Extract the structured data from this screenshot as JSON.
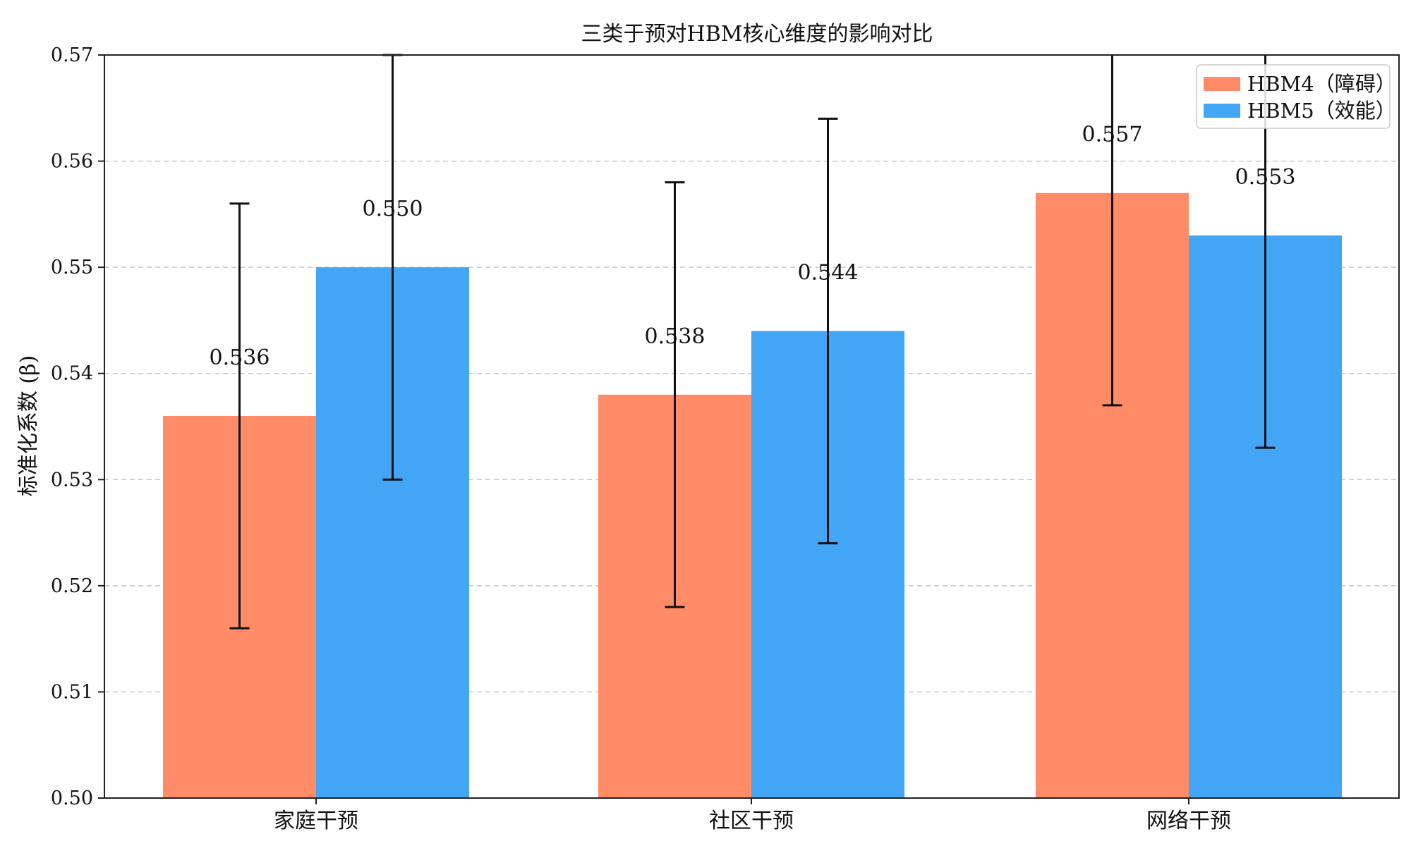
{
  "chart_data": {
    "type": "bar",
    "title": "三类于预对HBM核心维度的影响对比",
    "xlabel": "",
    "ylabel": "标准化系数 (β)",
    "categories": [
      "家庭干预",
      "社区干预",
      "网络干预"
    ],
    "series": [
      {
        "name": "HBM4（障碍）",
        "color": "#FF8C66",
        "values": [
          0.536,
          0.538,
          0.557
        ],
        "labels": [
          "0.536",
          "0.538",
          "0.557"
        ],
        "error": [
          0.02,
          0.02,
          0.02
        ]
      },
      {
        "name": "HBM5（效能）",
        "color": "#42A5F5",
        "values": [
          0.55,
          0.544,
          0.553
        ],
        "labels": [
          "0.550",
          "0.544",
          "0.553"
        ],
        "error": [
          0.02,
          0.02,
          0.02
        ]
      }
    ],
    "ylim": [
      0.5,
      0.57
    ],
    "yticks": [
      "0.50",
      "0.51",
      "0.52",
      "0.53",
      "0.54",
      "0.55",
      "0.56",
      "0.57"
    ],
    "grid": "y-dashed",
    "legend_position": "top-right"
  }
}
